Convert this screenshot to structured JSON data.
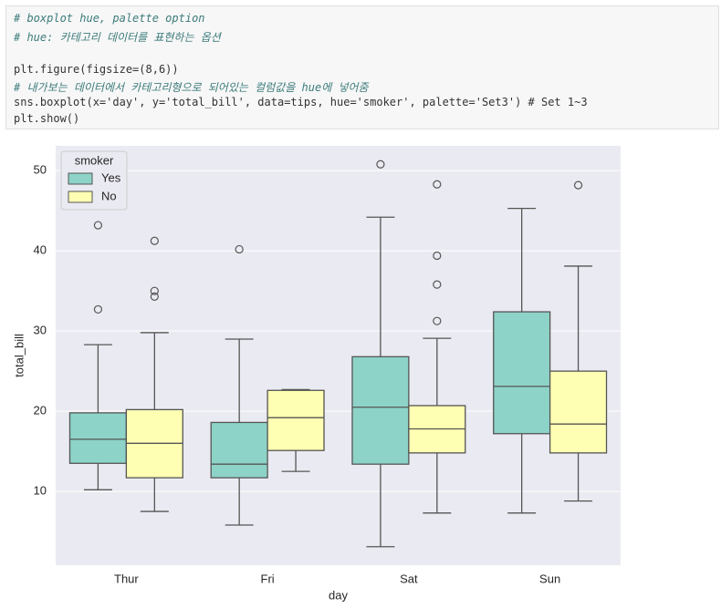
{
  "code": {
    "lines": [
      "# boxplot hue, palette option",
      "# hue: 카테고리 데이터를 표현하는 옵션",
      "plt.figure(figsize=(8,6))",
      "# 내가보는 데이터에서 카테고리형으로 되어있는 컬럼값을 hue에 넣어줌",
      "sns.boxplot(x='day', y='total_bill', data=tips, hue='smoker', palette='Set3') # Set 1~3",
      "plt.show()"
    ]
  },
  "chart_data": {
    "type": "boxplot",
    "xlabel": "day",
    "ylabel": "total_bill",
    "categories": [
      "Thur",
      "Fri",
      "Sat",
      "Sun"
    ],
    "ylim": [
      0.8,
      53.1
    ],
    "yticks": [
      10,
      20,
      30,
      40,
      50
    ],
    "grid": true,
    "legend_title": "smoker",
    "legend_position": "upper left",
    "series": [
      {
        "name": "Yes",
        "color": "#8dd3c7",
        "boxes": [
          {
            "min": 10.2,
            "q1": 13.5,
            "median": 16.5,
            "q3": 19.8,
            "max": 28.3,
            "outliers": [
              43.2,
              32.7
            ]
          },
          {
            "min": 5.8,
            "q1": 11.7,
            "median": 13.4,
            "q3": 18.6,
            "max": 29.0,
            "outliers": [
              40.2
            ]
          },
          {
            "min": 3.1,
            "q1": 13.4,
            "median": 20.5,
            "q3": 26.8,
            "max": 44.2,
            "outliers": [
              50.8
            ]
          },
          {
            "min": 7.3,
            "q1": 17.2,
            "median": 23.1,
            "q3": 32.4,
            "max": 45.3
          }
        ]
      },
      {
        "name": "No",
        "color": "#ffffb3",
        "boxes": [
          {
            "min": 7.5,
            "q1": 11.7,
            "median": 16.0,
            "q3": 20.2,
            "max": 29.8,
            "outliers": [
              41.25,
              35.0,
              34.3
            ]
          },
          {
            "min": 12.5,
            "q1": 15.1,
            "median": 19.2,
            "q3": 22.6,
            "max": 22.7
          },
          {
            "min": 7.3,
            "q1": 14.8,
            "median": 17.8,
            "q3": 20.7,
            "max": 29.1,
            "outliers": [
              48.3,
              39.4,
              35.8,
              31.25
            ]
          },
          {
            "min": 8.8,
            "q1": 14.8,
            "median": 18.4,
            "q3": 25.0,
            "max": 38.1,
            "outliers": [
              48.2
            ]
          }
        ]
      }
    ]
  }
}
